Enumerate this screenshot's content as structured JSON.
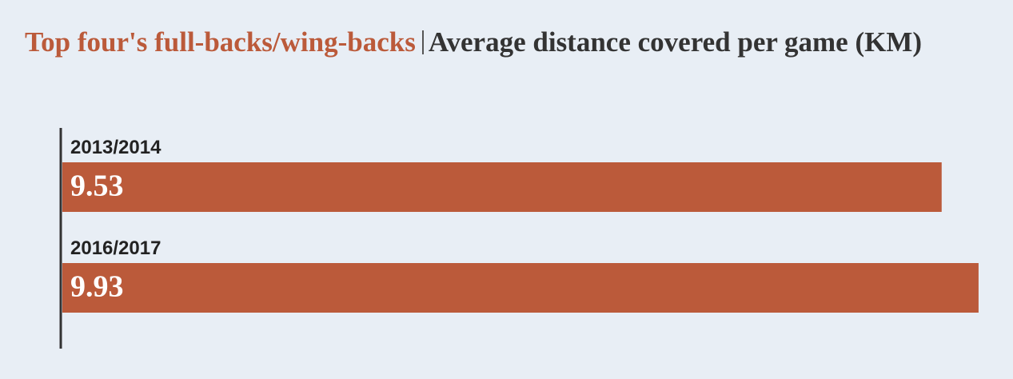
{
  "chart_data": {
    "type": "bar",
    "orientation": "horizontal",
    "title_highlight": "Top four's full-backs/wing-backs",
    "title": "Average distance covered per game (KM)",
    "categories": [
      "2013/2014",
      "2016/2017"
    ],
    "values": [
      9.53,
      9.93
    ],
    "color": "#bb5a3a",
    "xlim": [
      0,
      10
    ]
  }
}
